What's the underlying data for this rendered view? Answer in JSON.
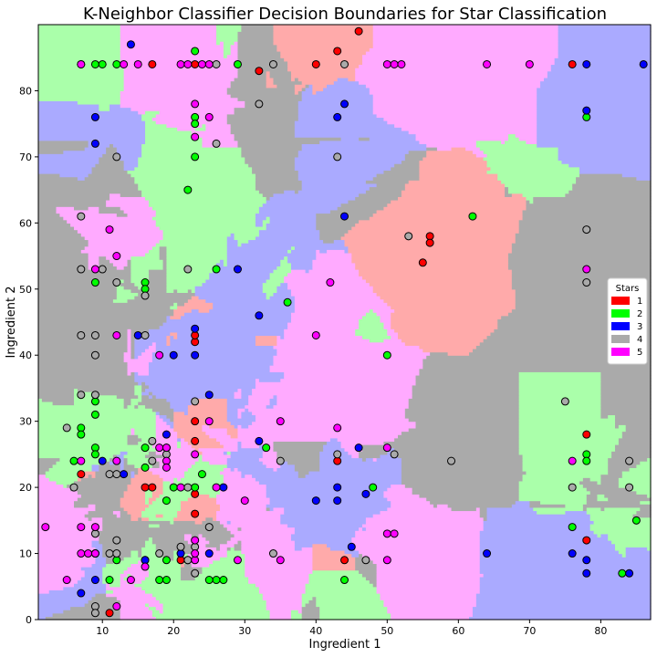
{
  "chart_data": {
    "type": "scatter",
    "title": "K-Neighbor Classifier Decision Boundaries for Star Classification",
    "xlabel": "Ingredient 1",
    "ylabel": "Ingredient 2",
    "xlim": [
      1,
      87
    ],
    "ylim": [
      0,
      90
    ],
    "x_ticks": [
      10,
      20,
      30,
      40,
      50,
      60,
      70,
      80
    ],
    "y_ticks": [
      0,
      10,
      20,
      30,
      40,
      50,
      60,
      70,
      80
    ],
    "grid": false,
    "legend": {
      "title": "Stars",
      "placement": "right"
    },
    "region_colors": {
      "1": "#ffaaaa",
      "2": "#aaffaa",
      "3": "#aaaaff",
      "4": "#aaaaaa",
      "5": "#ffaaff"
    },
    "series": [
      {
        "name": "1",
        "color": "#ff0000",
        "points": [
          [
            17,
            84
          ],
          [
            23,
            84
          ],
          [
            32,
            83
          ],
          [
            40,
            84
          ],
          [
            43,
            86
          ],
          [
            76,
            84
          ],
          [
            46,
            89
          ],
          [
            56,
            58
          ],
          [
            55,
            54
          ],
          [
            56,
            57
          ],
          [
            23,
            42
          ],
          [
            23,
            43
          ],
          [
            23,
            30
          ],
          [
            23,
            27
          ],
          [
            23,
            19
          ],
          [
            23,
            16
          ],
          [
            16,
            20
          ],
          [
            17,
            20
          ],
          [
            7,
            22
          ],
          [
            11,
            1
          ],
          [
            21,
            9
          ],
          [
            44,
            9
          ],
          [
            43,
            24
          ],
          [
            78,
            28
          ],
          [
            78,
            12
          ]
        ]
      },
      {
        "name": "2",
        "color": "#00ff00",
        "points": [
          [
            9,
            84
          ],
          [
            10,
            84
          ],
          [
            12,
            84
          ],
          [
            23,
            86
          ],
          [
            23,
            76
          ],
          [
            23,
            75
          ],
          [
            23,
            70
          ],
          [
            22,
            65
          ],
          [
            29,
            84
          ],
          [
            62,
            61
          ],
          [
            16,
            51
          ],
          [
            16,
            50
          ],
          [
            26,
            53
          ],
          [
            9,
            51
          ],
          [
            36,
            48
          ],
          [
            50,
            40
          ],
          [
            9,
            33
          ],
          [
            9,
            31
          ],
          [
            7,
            29
          ],
          [
            7,
            28
          ],
          [
            9,
            26
          ],
          [
            9,
            25
          ],
          [
            6,
            24
          ],
          [
            16,
            26
          ],
          [
            16,
            23
          ],
          [
            19,
            26
          ],
          [
            24,
            22
          ],
          [
            20,
            20
          ],
          [
            23,
            20
          ],
          [
            19,
            18
          ],
          [
            33,
            26
          ],
          [
            48,
            20
          ],
          [
            78,
            25
          ],
          [
            78,
            24
          ],
          [
            78,
            76
          ],
          [
            76,
            14
          ],
          [
            85,
            15
          ],
          [
            83,
            7
          ],
          [
            44,
            6
          ],
          [
            26,
            6
          ],
          [
            27,
            6
          ],
          [
            25,
            6
          ],
          [
            11,
            6
          ],
          [
            18,
            6
          ],
          [
            19,
            6
          ],
          [
            19,
            9
          ],
          [
            22,
            9
          ],
          [
            12,
            9
          ],
          [
            16,
            9
          ]
        ]
      },
      {
        "name": "3",
        "color": "#0000ff",
        "points": [
          [
            14,
            87
          ],
          [
            9,
            76
          ],
          [
            9,
            72
          ],
          [
            44,
            78
          ],
          [
            43,
            76
          ],
          [
            44,
            61
          ],
          [
            29,
            53
          ],
          [
            32,
            46
          ],
          [
            23,
            44
          ],
          [
            15,
            43
          ],
          [
            20,
            40
          ],
          [
            23,
            40
          ],
          [
            25,
            34
          ],
          [
            19,
            28
          ],
          [
            32,
            27
          ],
          [
            46,
            26
          ],
          [
            13,
            22
          ],
          [
            10,
            24
          ],
          [
            27,
            20
          ],
          [
            40,
            18
          ],
          [
            43,
            18
          ],
          [
            47,
            19
          ],
          [
            43,
            20
          ],
          [
            45,
            11
          ],
          [
            64,
            10
          ],
          [
            76,
            10
          ],
          [
            78,
            9
          ],
          [
            78,
            7
          ],
          [
            84,
            7
          ],
          [
            78,
            84
          ],
          [
            86,
            84
          ],
          [
            78,
            77
          ],
          [
            9,
            10
          ],
          [
            7,
            4
          ],
          [
            9,
            6
          ],
          [
            16,
            9
          ],
          [
            25,
            10
          ],
          [
            21,
            10
          ],
          [
            9,
            10
          ]
        ]
      },
      {
        "name": "4",
        "color": "#aaaaaa",
        "points": [
          [
            7,
            84
          ],
          [
            26,
            84
          ],
          [
            34,
            84
          ],
          [
            44,
            84
          ],
          [
            32,
            78
          ],
          [
            26,
            72
          ],
          [
            12,
            70
          ],
          [
            43,
            70
          ],
          [
            7,
            61
          ],
          [
            53,
            58
          ],
          [
            78,
            59
          ],
          [
            78,
            51
          ],
          [
            7,
            53
          ],
          [
            10,
            53
          ],
          [
            12,
            51
          ],
          [
            16,
            49
          ],
          [
            22,
            53
          ],
          [
            7,
            43
          ],
          [
            9,
            43
          ],
          [
            16,
            43
          ],
          [
            9,
            40
          ],
          [
            7,
            34
          ],
          [
            9,
            34
          ],
          [
            5,
            29
          ],
          [
            23,
            33
          ],
          [
            17,
            27
          ],
          [
            19,
            25
          ],
          [
            6,
            20
          ],
          [
            11,
            22
          ],
          [
            12,
            22
          ],
          [
            22,
            20
          ],
          [
            17,
            24
          ],
          [
            35,
            24
          ],
          [
            43,
            25
          ],
          [
            51,
            25
          ],
          [
            59,
            24
          ],
          [
            75,
            33
          ],
          [
            76,
            20
          ],
          [
            84,
            24
          ],
          [
            84,
            20
          ],
          [
            9,
            13
          ],
          [
            12,
            12
          ],
          [
            11,
            10
          ],
          [
            12,
            10
          ],
          [
            9,
            2
          ],
          [
            9,
            1
          ],
          [
            18,
            10
          ],
          [
            21,
            11
          ],
          [
            22,
            9
          ],
          [
            23,
            7
          ],
          [
            23,
            11
          ],
          [
            25,
            14
          ],
          [
            34,
            10
          ],
          [
            47,
            9
          ]
        ]
      },
      {
        "name": "5",
        "color": "#ff00ff",
        "points": [
          [
            7,
            84
          ],
          [
            13,
            84
          ],
          [
            15,
            84
          ],
          [
            21,
            84
          ],
          [
            22,
            84
          ],
          [
            24,
            84
          ],
          [
            25,
            84
          ],
          [
            50,
            84
          ],
          [
            51,
            84
          ],
          [
            52,
            84
          ],
          [
            64,
            84
          ],
          [
            70,
            84
          ],
          [
            23,
            78
          ],
          [
            23,
            73
          ],
          [
            25,
            76
          ],
          [
            11,
            59
          ],
          [
            12,
            55
          ],
          [
            9,
            53
          ],
          [
            42,
            51
          ],
          [
            78,
            53
          ],
          [
            12,
            43
          ],
          [
            18,
            40
          ],
          [
            40,
            43
          ],
          [
            35,
            30
          ],
          [
            25,
            30
          ],
          [
            18,
            26
          ],
          [
            19,
            26
          ],
          [
            19,
            24
          ],
          [
            23,
            25
          ],
          [
            21,
            20
          ],
          [
            26,
            20
          ],
          [
            19,
            23
          ],
          [
            12,
            24
          ],
          [
            7,
            24
          ],
          [
            30,
            18
          ],
          [
            43,
            29
          ],
          [
            50,
            26
          ],
          [
            76,
            24
          ],
          [
            2,
            14
          ],
          [
            7,
            14
          ],
          [
            9,
            14
          ],
          [
            7,
            10
          ],
          [
            8,
            10
          ],
          [
            9,
            10
          ],
          [
            5,
            6
          ],
          [
            12,
            2
          ],
          [
            16,
            8
          ],
          [
            14,
            6
          ],
          [
            23,
            9
          ],
          [
            23,
            10
          ],
          [
            23,
            12
          ],
          [
            29,
            9
          ],
          [
            35,
            9
          ],
          [
            50,
            13
          ],
          [
            51,
            13
          ],
          [
            50,
            9
          ]
        ]
      }
    ]
  }
}
